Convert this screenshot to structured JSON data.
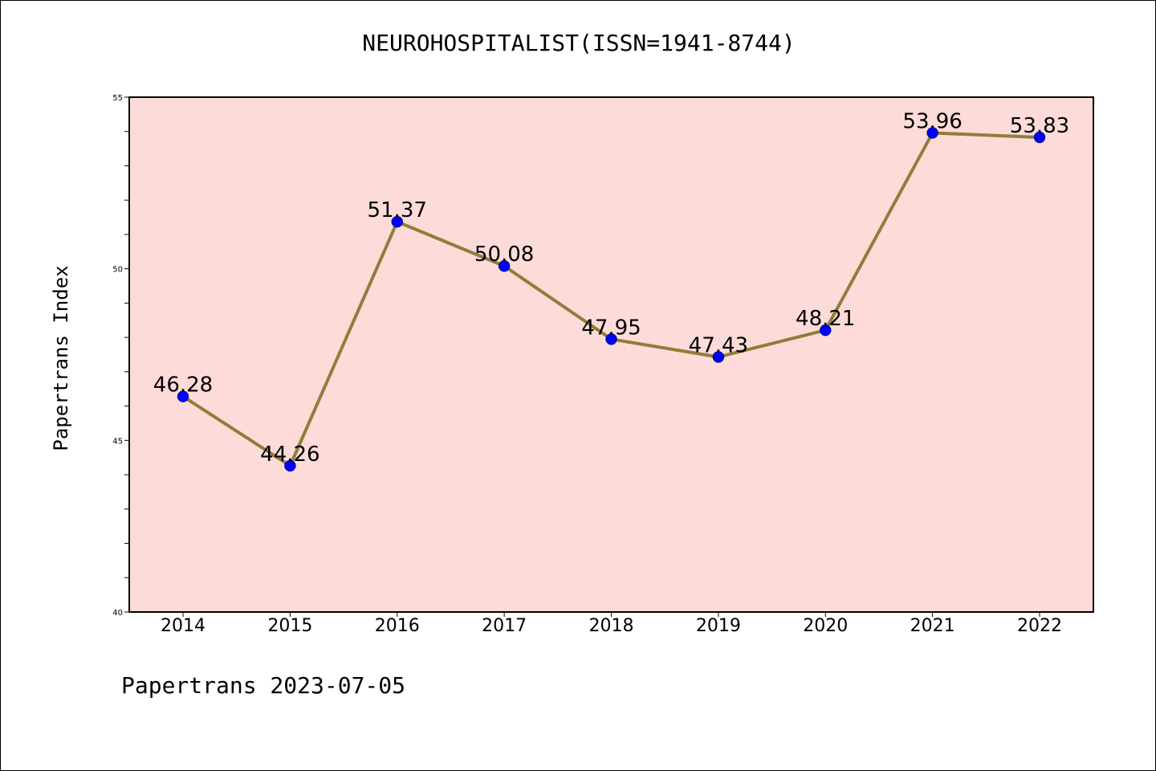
{
  "chart_data": {
    "type": "line",
    "title": "NEUROHOSPITALIST(ISSN=1941-8744)",
    "ylabel": "Papertrans Index",
    "xlabel": "",
    "categories": [
      "2014",
      "2015",
      "2016",
      "2017",
      "2018",
      "2019",
      "2020",
      "2021",
      "2022"
    ],
    "series": [
      {
        "values": [
          46.28,
          44.26,
          51.37,
          50.08,
          47.95,
          47.43,
          48.21,
          53.96,
          53.83
        ],
        "labels": [
          "46.28",
          "44.26",
          "51.37",
          "50.08",
          "47.95",
          "47.43",
          "48.21",
          "53.96",
          "53.83"
        ],
        "line_color": "#8f7e3c",
        "marker_color": "#0000ff"
      }
    ],
    "ylim": [
      40,
      55
    ],
    "yticks": [
      "40",
      "45",
      "50",
      "55"
    ],
    "grid": false,
    "plot_background": "#fddbd8"
  },
  "footer": "Papertrans 2023-07-05"
}
